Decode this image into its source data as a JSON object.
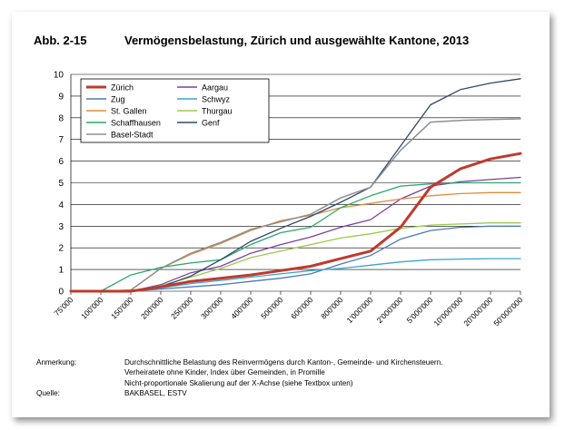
{
  "figure": {
    "number": "Abb. 2-15",
    "title": "Vermögensbelastung, Zürich und ausgewählte Kantone, 2013"
  },
  "chart_data": {
    "type": "line",
    "title": "Vermögensbelastung, Zürich und ausgewählte Kantone, 2013",
    "xlabel": "",
    "ylabel": "",
    "categories": [
      "75'000",
      "100'000",
      "150'000",
      "200'000",
      "250'000",
      "300'000",
      "400'000",
      "500'000",
      "600'000",
      "800'000",
      "1'000'000",
      "2'000'000",
      "5'000'000",
      "10'000'000",
      "20'000'000",
      "50'000'000"
    ],
    "ylim": [
      0,
      10
    ],
    "yticks": [
      "0",
      "1",
      "2",
      "3",
      "4",
      "5",
      "6",
      "7",
      "8",
      "9",
      "10"
    ],
    "grid": true,
    "legend_position": "top-left",
    "series": [
      {
        "name": "Zürich",
        "color": "#c0392b",
        "width": 3,
        "values": [
          0,
          0,
          0,
          0.2,
          0.45,
          0.6,
          0.75,
          0.95,
          1.15,
          1.5,
          1.85,
          2.95,
          4.8,
          5.65,
          6.1,
          6.35
        ]
      },
      {
        "name": "Aargau",
        "color": "#7b3fa0",
        "width": 1.3,
        "values": [
          0,
          0,
          0,
          0.3,
          0.85,
          1.15,
          1.75,
          2.15,
          2.5,
          2.95,
          3.3,
          4.25,
          4.85,
          5.05,
          5.15,
          5.25
        ]
      },
      {
        "name": "Zug",
        "color": "#4a79b5",
        "width": 1.3,
        "values": [
          0,
          0,
          0,
          0.1,
          0.2,
          0.3,
          0.45,
          0.6,
          0.8,
          1.25,
          1.65,
          2.4,
          2.8,
          2.95,
          3.0,
          3.0
        ]
      },
      {
        "name": "Schwyz",
        "color": "#3aa5cf",
        "width": 1.3,
        "values": [
          0,
          0,
          0,
          0.15,
          0.35,
          0.5,
          0.65,
          0.8,
          0.95,
          1.05,
          1.2,
          1.35,
          1.45,
          1.48,
          1.5,
          1.5
        ]
      },
      {
        "name": "St. Gallen",
        "color": "#e38a3c",
        "width": 1.3,
        "values": [
          0,
          0,
          0.05,
          1.05,
          1.7,
          2.2,
          2.8,
          3.25,
          3.5,
          3.85,
          4.05,
          4.25,
          4.4,
          4.5,
          4.55,
          4.55
        ]
      },
      {
        "name": "Thurgau",
        "color": "#9bc94b",
        "width": 1.3,
        "values": [
          0,
          0,
          0,
          0.25,
          0.65,
          1.05,
          1.55,
          1.85,
          2.15,
          2.45,
          2.65,
          2.9,
          3.05,
          3.1,
          3.15,
          3.15
        ]
      },
      {
        "name": "Schaffhausen",
        "color": "#2ea56b",
        "width": 1.3,
        "values": [
          0,
          0,
          0.75,
          1.1,
          1.3,
          1.45,
          2.15,
          2.7,
          2.95,
          3.85,
          4.4,
          4.85,
          4.95,
          5.0,
          5.0,
          5.0
        ]
      },
      {
        "name": "Genf",
        "color": "#2f4866",
        "width": 1.3,
        "values": [
          0,
          0,
          0,
          0.2,
          0.7,
          1.45,
          2.3,
          2.9,
          3.45,
          4.1,
          4.8,
          6.7,
          8.6,
          9.3,
          9.6,
          9.8
        ]
      },
      {
        "name": "Basel-Stadt",
        "color": "#8f8f8f",
        "width": 1.5,
        "values": [
          0,
          0,
          0.05,
          1.05,
          1.75,
          2.25,
          2.85,
          3.2,
          3.55,
          4.3,
          4.8,
          6.5,
          7.8,
          7.88,
          7.92,
          7.95
        ]
      }
    ]
  },
  "notes": {
    "remark_label": "Anmerkung:",
    "remark_lines": [
      "Durchschnittliche Belastung des Reinvermögens durch Kanton-, Gemeinde- und Kirchensteuern.",
      "Verheiratete ohne Kinder, Index über Gemeinden, in Promille",
      "Nicht-proportionale Skalierung auf der X-Achse (siehe Textbox unten)"
    ],
    "source_label": "Quelle:",
    "source_text": "BAKBASEL, ESTV"
  }
}
